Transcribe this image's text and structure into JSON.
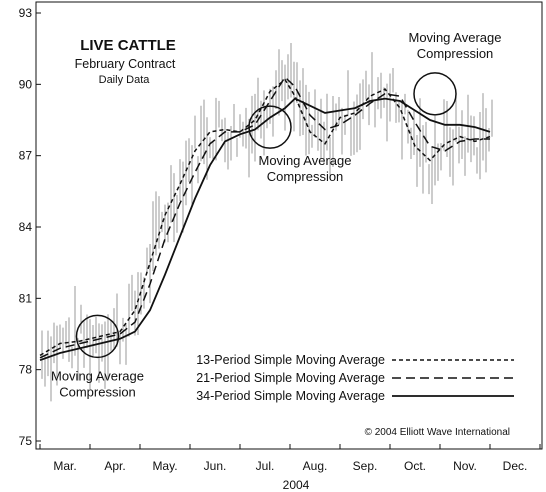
{
  "chart_data": {
    "type": "line",
    "title": "LIVE CATTLE",
    "subtitle": "February Contract",
    "subtitle2": "Daily Data",
    "xlabel": "2004",
    "ylabel": "",
    "ylim": [
      75,
      93
    ],
    "yticks": [
      75,
      78,
      81,
      84,
      87,
      90,
      93
    ],
    "ytick_labels": [
      "75",
      "78",
      "81",
      "84",
      "87",
      "90",
      "93"
    ],
    "xlim": [
      0,
      10
    ],
    "xticks": [
      0.5,
      1.5,
      2.5,
      3.5,
      4.5,
      5.5,
      6.5,
      7.5,
      8.5,
      9.5
    ],
    "xtick_labels": [
      "Mar.",
      "Apr.",
      "May.",
      "Jun.",
      "Jul.",
      "Aug.",
      "Sep.",
      "Oct.",
      "Nov.",
      "Dec."
    ],
    "grid": false,
    "legend_position": "bottom-right",
    "series": [
      {
        "name": "13-Period Simple Moving Average",
        "dash": "short",
        "x": [
          0,
          0.4,
          0.8,
          1.2,
          1.6,
          1.9,
          2.2,
          2.5,
          2.8,
          3.1,
          3.4,
          3.7,
          4.0,
          4.3,
          4.6,
          4.9,
          5.1,
          5.4,
          5.7,
          6.0,
          6.3,
          6.6,
          6.9,
          7.2,
          7.5,
          7.8,
          8.1,
          8.4,
          8.7,
          9.0
        ],
        "y": [
          78.6,
          79.1,
          79.2,
          79.4,
          79.6,
          80.5,
          82.5,
          84.5,
          85.8,
          87.2,
          88.0,
          88.1,
          88.0,
          88.5,
          89.7,
          90.2,
          89.5,
          88.0,
          87.5,
          88.6,
          88.8,
          89.5,
          89.8,
          89.0,
          87.4,
          86.8,
          87.5,
          87.8,
          87.6,
          87.8
        ]
      },
      {
        "name": "21-Period Simple Moving Average",
        "dash": "long",
        "x": [
          0,
          0.4,
          0.8,
          1.2,
          1.6,
          1.9,
          2.2,
          2.5,
          2.8,
          3.1,
          3.4,
          3.7,
          4.0,
          4.3,
          4.6,
          4.9,
          5.1,
          5.4,
          5.7,
          6.0,
          6.3,
          6.6,
          6.9,
          7.2,
          7.5,
          7.8,
          8.1,
          8.4,
          8.7,
          9.0
        ],
        "y": [
          78.5,
          78.9,
          79.1,
          79.3,
          79.5,
          80.0,
          81.6,
          83.5,
          85.0,
          86.3,
          87.5,
          88.0,
          88.0,
          88.3,
          89.3,
          90.3,
          89.9,
          88.7,
          88.1,
          88.3,
          88.7,
          89.2,
          89.6,
          89.5,
          88.4,
          87.4,
          87.2,
          87.6,
          87.7,
          87.7
        ]
      },
      {
        "name": "34-Period Simple Moving Average",
        "dash": "solid",
        "x": [
          0,
          0.4,
          0.8,
          1.2,
          1.6,
          1.9,
          2.2,
          2.5,
          2.8,
          3.1,
          3.4,
          3.7,
          4.0,
          4.3,
          4.6,
          4.9,
          5.1,
          5.4,
          5.7,
          6.0,
          6.3,
          6.6,
          6.9,
          7.2,
          7.5,
          7.8,
          8.1,
          8.4,
          8.7,
          9.0
        ],
        "y": [
          78.4,
          78.7,
          78.9,
          79.1,
          79.3,
          79.6,
          80.5,
          82.0,
          83.6,
          85.2,
          86.6,
          87.6,
          87.9,
          88.1,
          88.6,
          89.0,
          89.4,
          89.1,
          88.8,
          88.9,
          89.0,
          89.3,
          89.4,
          89.3,
          88.9,
          88.5,
          88.3,
          88.3,
          88.2,
          88.0
        ]
      }
    ],
    "annotations": [
      {
        "label": "Moving Average Compression",
        "line1": "Moving Average",
        "line2": "Compression",
        "x": 1.15,
        "y": 79.4
      },
      {
        "label": "Moving Average Compression",
        "line1": "Moving Average",
        "line2": "Compression",
        "x": 4.6,
        "y": 88.2
      },
      {
        "label": "Moving Average Compression",
        "line1": "Moving Average",
        "line2": "Compression",
        "x": 7.9,
        "y": 89.6
      }
    ],
    "copyright": "© 2004 Elliott Wave International"
  }
}
